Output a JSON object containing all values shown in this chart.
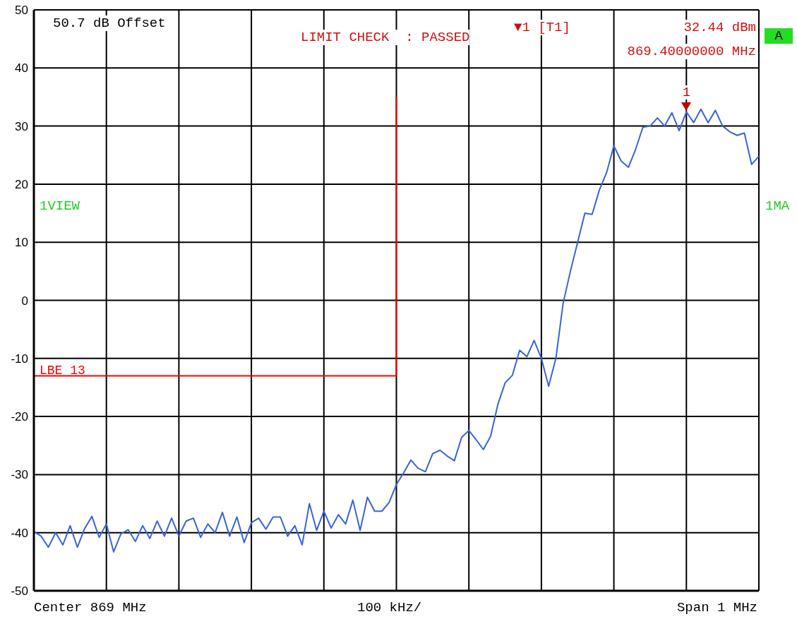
{
  "chart_data": {
    "type": "line",
    "categories": [
      null,
      null,
      null,
      null,
      null,
      null,
      null,
      null,
      null,
      null,
      null,
      null,
      null,
      null,
      null,
      null,
      null,
      null,
      null,
      null,
      null,
      null,
      null,
      null,
      null,
      null,
      null,
      null,
      null,
      null,
      null,
      null,
      null,
      null,
      null,
      null,
      null,
      null,
      null,
      null,
      null,
      null,
      null,
      null,
      null,
      null,
      null,
      null,
      null,
      null,
      null,
      null,
      null,
      null,
      null,
      null,
      null,
      null,
      null,
      null,
      null,
      null,
      null,
      null,
      null,
      null,
      null,
      null,
      null,
      null,
      null,
      null,
      null,
      null,
      null,
      null,
      null,
      null,
      null,
      null,
      null,
      null,
      null,
      null,
      null,
      null,
      null,
      null,
      null,
      null,
      null,
      null,
      null,
      null,
      null,
      null,
      null,
      null,
      null,
      null,
      null
    ],
    "ylim": [
      -50,
      50
    ],
    "yticks": [
      -50,
      -40,
      -30,
      -20,
      -10,
      0,
      10,
      20,
      30,
      40,
      50
    ],
    "grid": true,
    "legend": false,
    "line_style": "solid",
    "series": [
      {
        "color": "#3a63d8",
        "values": [
          -39.8,
          -40.6,
          -42.5,
          -40,
          -42.1,
          -38.8,
          -42.5,
          -39.3,
          -37.2,
          -40.8,
          -38.5,
          -43.3,
          -40.2,
          -39.5,
          -41.5,
          -38.8,
          -41,
          -38,
          -40.6,
          -37.5,
          -40.6,
          -38,
          -37.5,
          -40.8,
          -38.5,
          -40,
          -36.5,
          -40.6,
          -37.3,
          -41.7,
          -38.3,
          -37.5,
          -39.4,
          -37.3,
          -37.3,
          -40.6,
          -38.8,
          -42.1,
          -35,
          -39.6,
          -36.3,
          -39.2,
          -36.9,
          -38.5,
          -34.4,
          -39.6,
          -33.9,
          -36.3,
          -36.3,
          -34.8,
          -31.7,
          -29.7,
          -27.5,
          -28.9,
          -29.5,
          -26.4,
          -25.8,
          -26.8,
          -27.6,
          -23.6,
          -22.4,
          -24,
          -25.7,
          -23.4,
          -17.9,
          -14.2,
          -12.9,
          -8.6,
          -9.7,
          -6.9,
          -10,
          -14.8,
          -10,
          -0.5,
          5,
          10,
          15,
          14.8,
          19,
          22,
          26.6,
          24,
          22.9,
          26,
          29.8,
          30,
          31.4,
          30,
          32.3,
          29.2,
          32.44,
          30.6,
          32.9,
          30.6,
          32.7,
          30,
          29,
          28.4,
          28.8,
          23.4,
          24.8
        ]
      },
      {
        "type": "step",
        "name": "LBE 13",
        "color": "#ff0000",
        "values": [
          -13,
          -13,
          -13,
          -13,
          -13,
          -13,
          -13,
          -13,
          -13,
          -13,
          -13,
          -13,
          -13,
          -13,
          -13,
          -13,
          -13,
          -13,
          -13,
          -13,
          -13,
          -13,
          -13,
          -13,
          -13,
          -13,
          -13,
          -13,
          -13,
          -13,
          -13,
          -13,
          -13,
          -13,
          -13,
          -13,
          -13,
          -13,
          -13,
          -13,
          -13,
          -13,
          -13,
          -13,
          -13,
          -13,
          -13,
          -13,
          -13,
          -13,
          35,
          null,
          null,
          null,
          null,
          null,
          null,
          null,
          null,
          null,
          null,
          null,
          null,
          null,
          null,
          null,
          null,
          null,
          null,
          null,
          null,
          null,
          null,
          null,
          null,
          null,
          null,
          null,
          null,
          null,
          null,
          null,
          null,
          null,
          null,
          null,
          null,
          null,
          null,
          null,
          null,
          null,
          null,
          null,
          null,
          null,
          null,
          null,
          null,
          null,
          null
        ]
      }
    ],
    "annotations": [
      "50.7 dB Offset",
      "LIMIT CHECK  : PASSED",
      "▼1 [T1]",
      "32.44 dBm",
      "869.40000000 MHz",
      "A",
      "1VIEW",
      "1MA",
      "Center 869 MHz",
      "100 kHz/",
      "Span 1 MHz",
      {
        "text": "1",
        "y": 32.44
      }
    ]
  }
}
